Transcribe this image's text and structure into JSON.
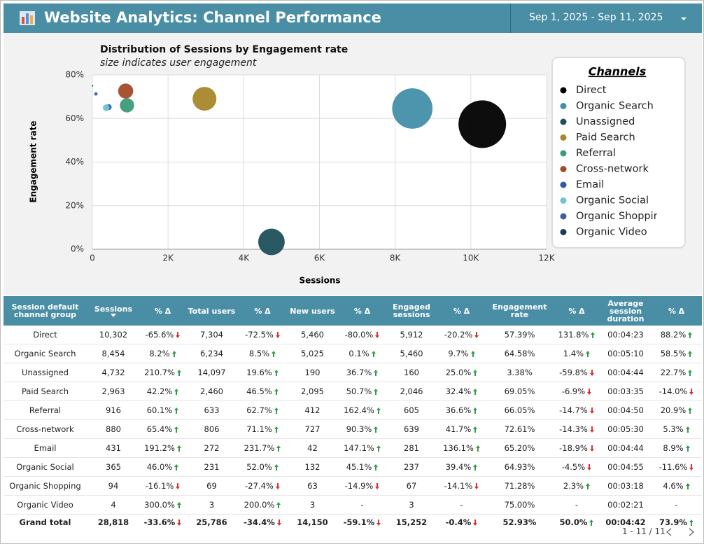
{
  "header": {
    "title": "Website Analytics: Channel Performance",
    "date_range": "Sep 1, 2025 - Sep 11, 2025"
  },
  "chart_data": {
    "type": "scatter",
    "title": "Distribution of Sessions by Engagement rate",
    "subtitle": "size indicates user engagement",
    "x_label": "Sessions",
    "y_label": "Engagement rate",
    "legend_title": "Channels",
    "xlim": [
      0,
      12000
    ],
    "ylim": [
      0,
      80
    ],
    "xticks": [
      0,
      {
        "value": 2000,
        "label": "2K"
      },
      {
        "value": 4000,
        "label": "4K"
      },
      {
        "value": 6000,
        "label": "6K"
      },
      {
        "value": 8000,
        "label": "8K"
      },
      {
        "value": 10000,
        "label": "10K"
      },
      {
        "value": 12000,
        "label": "12K"
      }
    ],
    "yticks": [
      {
        "value": 0,
        "label": "0%"
      },
      {
        "value": 20,
        "label": "20%"
      },
      {
        "value": 40,
        "label": "40%"
      },
      {
        "value": 60,
        "label": "60%"
      },
      {
        "value": 80,
        "label": "80%"
      }
    ],
    "grid": true,
    "series": [
      {
        "name": "Direct",
        "color": "#000000",
        "x": [
          10302
        ],
        "values": [
          57.39
        ],
        "sizes": [
          100
        ]
      },
      {
        "name": "Organic Search",
        "color": "#438fa8",
        "x": [
          8454
        ],
        "values": [
          64.58
        ],
        "sizes": [
          72
        ]
      },
      {
        "name": "Unassigned",
        "color": "#1f4f5b",
        "x": [
          4732
        ],
        "values": [
          3.38
        ],
        "sizes": [
          31
        ]
      },
      {
        "name": "Paid Search",
        "color": "#a8862a",
        "x": [
          2963
        ],
        "values": [
          69.05
        ],
        "sizes": [
          25
        ]
      },
      {
        "name": "Referral",
        "color": "#3c9b78",
        "x": [
          916
        ],
        "values": [
          66.05
        ],
        "sizes": [
          9
        ]
      },
      {
        "name": "Cross-network",
        "color": "#a44a2a",
        "x": [
          880
        ],
        "values": [
          72.61
        ],
        "sizes": [
          10
        ]
      },
      {
        "name": "Email",
        "color": "#2f58a8",
        "x": [
          431
        ],
        "values": [
          65.2
        ],
        "sizes": [
          1.5
        ]
      },
      {
        "name": "Organic Social",
        "color": "#72c4d0",
        "x": [
          365
        ],
        "values": [
          64.93
        ],
        "sizes": [
          2
        ]
      },
      {
        "name": "Organic Shopping",
        "color": "#3a5ea8",
        "x": [
          94
        ],
        "values": [
          71.28
        ],
        "sizes": [
          0.5
        ]
      },
      {
        "name": "Organic Video",
        "color": "#1f3a5e",
        "x": [
          4
        ],
        "values": [
          75.0
        ],
        "sizes": [
          0.1
        ]
      }
    ]
  },
  "table": {
    "columns": [
      "Session default channel group",
      "Sessions",
      "% Δ",
      "Total users",
      "% Δ",
      "New users",
      "% Δ",
      "Engaged sessions",
      "% Δ",
      "Engagement rate",
      "% Δ",
      "Average session duration",
      "% Δ"
    ],
    "rows": [
      [
        "Direct",
        "10,302",
        "-65.6%",
        "7,304",
        "-72.5%",
        "5,460",
        "-80.0%",
        "5,912",
        "-20.2%",
        "57.39%",
        "131.8%",
        "00:04:23",
        "88.2%"
      ],
      [
        "Organic Search",
        "8,454",
        "8.2%",
        "6,234",
        "8.5%",
        "5,025",
        "0.1%",
        "5,460",
        "9.7%",
        "64.58%",
        "1.4%",
        "00:05:10",
        "58.5%"
      ],
      [
        "Unassigned",
        "4,732",
        "210.7%",
        "14,097",
        "19.6%",
        "190",
        "36.7%",
        "160",
        "25.0%",
        "3.38%",
        "-59.8%",
        "00:04:44",
        "22.7%"
      ],
      [
        "Paid Search",
        "2,963",
        "42.2%",
        "2,460",
        "46.5%",
        "2,095",
        "50.7%",
        "2,046",
        "32.4%",
        "69.05%",
        "-6.9%",
        "00:03:35",
        "-14.0%"
      ],
      [
        "Referral",
        "916",
        "60.1%",
        "633",
        "62.7%",
        "412",
        "162.4%",
        "605",
        "36.6%",
        "66.05%",
        "-14.7%",
        "00:04:50",
        "20.9%"
      ],
      [
        "Cross-network",
        "880",
        "65.4%",
        "806",
        "71.1%",
        "727",
        "90.3%",
        "639",
        "41.7%",
        "72.61%",
        "-14.3%",
        "00:05:30",
        "5.3%"
      ],
      [
        "Email",
        "431",
        "191.2%",
        "272",
        "231.7%",
        "42",
        "147.1%",
        "281",
        "136.1%",
        "65.20%",
        "-18.9%",
        "00:04:44",
        "8.9%"
      ],
      [
        "Organic Social",
        "365",
        "46.0%",
        "231",
        "52.0%",
        "132",
        "45.1%",
        "237",
        "39.4%",
        "64.93%",
        "-4.5%",
        "00:04:55",
        "-11.6%"
      ],
      [
        "Organic Shopping",
        "94",
        "-16.1%",
        "69",
        "-27.4%",
        "63",
        "-14.9%",
        "67",
        "-14.1%",
        "71.28%",
        "2.3%",
        "00:03:18",
        "4.6%"
      ],
      [
        "Organic Video",
        "4",
        "300.0%",
        "3",
        "200.0%",
        "3",
        "-",
        "3",
        "-",
        "75.00%",
        "-",
        "00:02:21",
        "-"
      ]
    ],
    "total": [
      "Grand total",
      "28,818",
      "-33.6%",
      "25,786",
      "-34.4%",
      "14,150",
      "-59.1%",
      "15,252",
      "-0.4%",
      "52.93%",
      "50.0%",
      "00:04:42",
      "73.9%"
    ]
  },
  "pagination": "1 - 11 / 11"
}
